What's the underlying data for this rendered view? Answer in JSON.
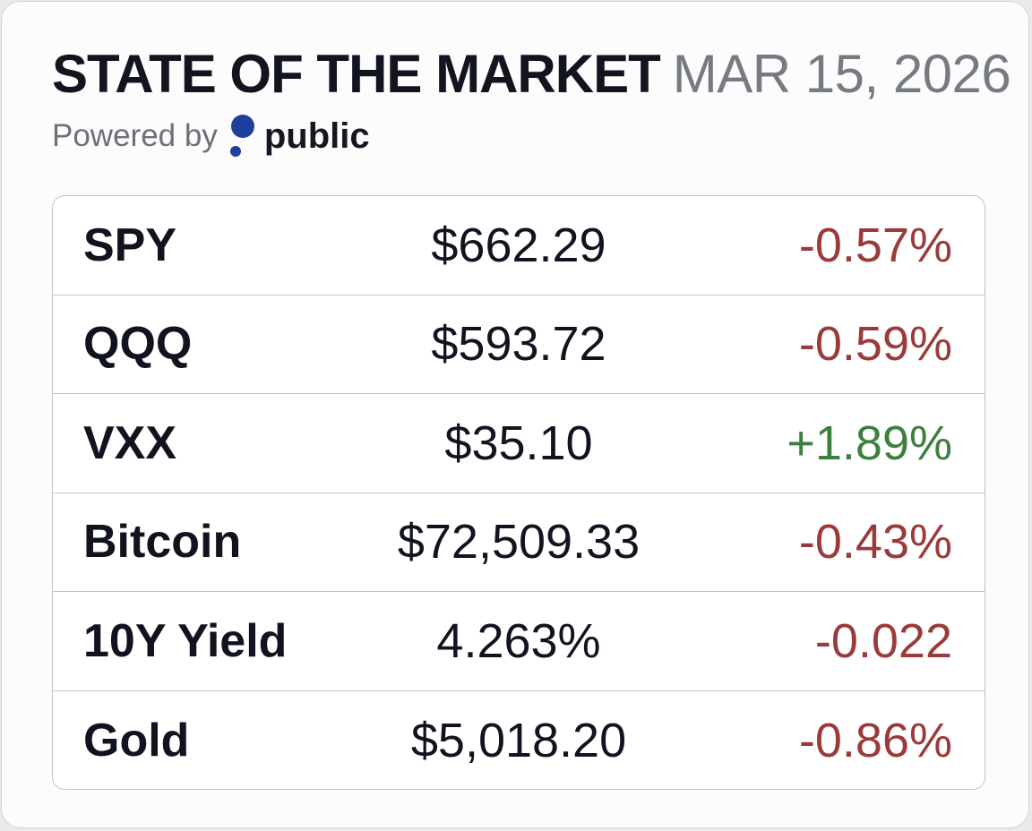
{
  "header": {
    "title": "STATE OF THE MARKET",
    "date": "MAR 15, 2026",
    "powered_by": "Powered by",
    "brand": "public",
    "brand_icon": "public-logo-icon"
  },
  "colors": {
    "negative": "#9b3a3a",
    "positive": "#3d7f3e",
    "brand": "#1e3f9b"
  },
  "market": {
    "rows": [
      {
        "name": "SPY",
        "price": "$662.29",
        "change": "-0.57%",
        "direction": "down"
      },
      {
        "name": "QQQ",
        "price": "$593.72",
        "change": "-0.59%",
        "direction": "down"
      },
      {
        "name": "VXX",
        "price": "$35.10",
        "change": "+1.89%",
        "direction": "up"
      },
      {
        "name": "Bitcoin",
        "price": "$72,509.33",
        "change": "-0.43%",
        "direction": "down"
      },
      {
        "name": "10Y Yield",
        "price": "4.263%",
        "change": "-0.022",
        "direction": "down"
      },
      {
        "name": "Gold",
        "price": "$5,018.20",
        "change": "-0.86%",
        "direction": "down"
      }
    ]
  }
}
